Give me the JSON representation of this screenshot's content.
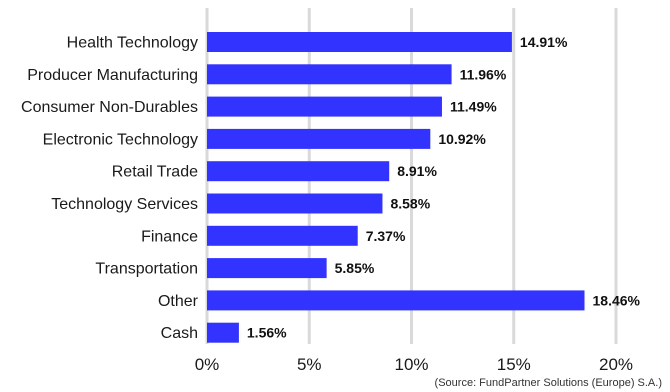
{
  "chart_data": {
    "type": "bar",
    "orientation": "horizontal",
    "categories": [
      "Health Technology",
      "Producer Manufacturing",
      "Consumer Non-Durables",
      "Electronic Technology",
      "Retail Trade",
      "Technology Services",
      "Finance",
      "Transportation",
      "Other",
      "Cash"
    ],
    "values": [
      14.91,
      11.96,
      11.49,
      10.92,
      8.91,
      8.58,
      7.37,
      5.85,
      18.46,
      1.56
    ],
    "value_labels": [
      "14.91%",
      "11.96%",
      "11.49%",
      "10.92%",
      "8.91%",
      "8.58%",
      "7.37%",
      "5.85%",
      "18.46%",
      "1.56%"
    ],
    "xlim": [
      0,
      20
    ],
    "x_ticks": [
      0,
      5,
      10,
      15,
      20
    ],
    "x_tick_labels": [
      "0%",
      "5%",
      "10%",
      "15%",
      "20%"
    ],
    "grid": true,
    "bar_color": "#3333ff",
    "grid_color": "#d9d9d9"
  },
  "source_note": "(Source: FundPartner Solutions (Europe) S.A.)"
}
